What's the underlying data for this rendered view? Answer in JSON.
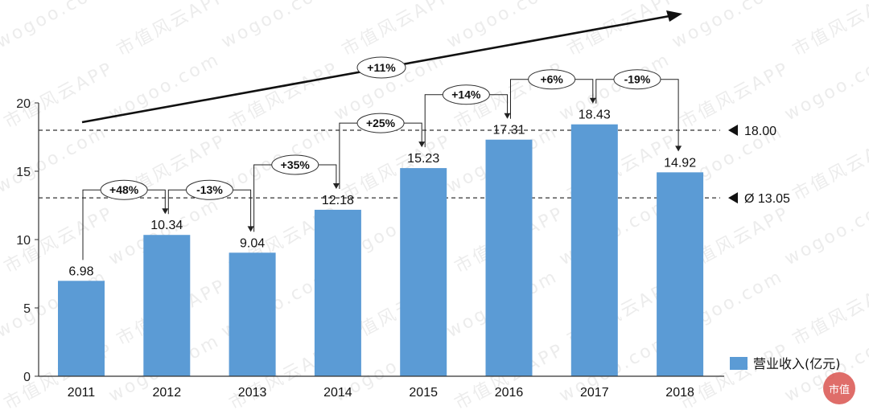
{
  "chart_data": {
    "type": "bar",
    "categories": [
      "2011",
      "2012",
      "2013",
      "2014",
      "2015",
      "2016",
      "2017",
      "2018"
    ],
    "series": [
      {
        "name": "营业收入(亿元)",
        "values": [
          6.98,
          10.34,
          9.04,
          12.18,
          15.23,
          17.31,
          18.43,
          14.92
        ],
        "color": "#5b9bd5"
      }
    ],
    "data_labels": [
      "6.98",
      "10.34",
      "9.04",
      "12.18",
      "15.23",
      "17.31",
      "18.43",
      "14.92"
    ],
    "ylim": [
      0,
      20
    ],
    "yticks": [
      0,
      5,
      10,
      15,
      20
    ],
    "grid": false,
    "legend_position": "bottom-right",
    "reference_lines": [
      {
        "value": 18.0,
        "label": "18.00"
      },
      {
        "value": 13.05,
        "label": "Ø 13.05"
      }
    ],
    "growth_annotations": [
      {
        "from": "2011",
        "to": "2012",
        "label": "+48%"
      },
      {
        "from": "2012",
        "to": "2013",
        "label": "-13%"
      },
      {
        "from": "2013",
        "to": "2014",
        "label": "+35%"
      },
      {
        "from": "2014",
        "to": "2015",
        "label": "+25%"
      },
      {
        "from": "2015",
        "to": "2016",
        "label": "+14%"
      },
      {
        "from": "2016",
        "to": "2017",
        "label": "+6%"
      },
      {
        "from": "2017",
        "to": "2018",
        "label": "-19%"
      }
    ],
    "cagr_label": "+11%"
  },
  "watermark": {
    "text": "市值风云APP",
    "site": "wogoo.com",
    "logo_text": "市值"
  },
  "colors": {
    "bar": "#5b9bd5",
    "axis": "#333333",
    "reference_line": "#333333"
  }
}
